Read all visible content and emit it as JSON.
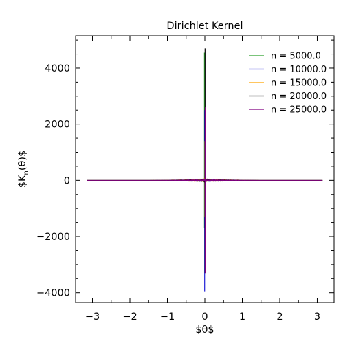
{
  "chart_data": {
    "type": "line",
    "title": "Dirichlet Kernel",
    "xlabel": "$θ$",
    "ylabel_prefix": "$K",
    "ylabel_sub": "n",
    "ylabel_suffix": "(θ)$",
    "xlim": [
      -3.45,
      3.45
    ],
    "ylim": [
      -4350,
      5150
    ],
    "x_range": [
      -3.14159,
      3.14159
    ],
    "x_ticks": [
      -3,
      -2,
      -1,
      0,
      1,
      2,
      3
    ],
    "x_tick_labels": [
      "−3",
      "−2",
      "−1",
      "0",
      "1",
      "2",
      "3"
    ],
    "y_ticks": [
      -4000,
      -2000,
      0,
      2000,
      4000
    ],
    "y_tick_labels": [
      "−4000",
      "−2000",
      "0",
      "2000",
      "4000"
    ],
    "legend_position": "top-right",
    "grid": false,
    "series": [
      {
        "name": "n = 5000.0",
        "n": 5000,
        "color": "#2ca02c",
        "peak": 4550,
        "trough": -1700,
        "envelope_band": 70
      },
      {
        "name": "n = 10000.0",
        "n": 10000,
        "color": "#1f1fd6",
        "peak": 2500,
        "trough": -3950,
        "envelope_band": 60
      },
      {
        "name": "n = 15000.0",
        "n": 15000,
        "color": "#ffa500",
        "peak": 1400,
        "trough": -1300,
        "envelope_band": 90
      },
      {
        "name": "n = 20000.0",
        "n": 20000,
        "color": "#000000",
        "peak": 4700,
        "trough": -3300,
        "envelope_band": 80
      },
      {
        "name": "n = 25000.0",
        "n": 25000,
        "color": "#800080",
        "peak": 2600,
        "trough": -3300,
        "envelope_band": 50
      }
    ]
  }
}
